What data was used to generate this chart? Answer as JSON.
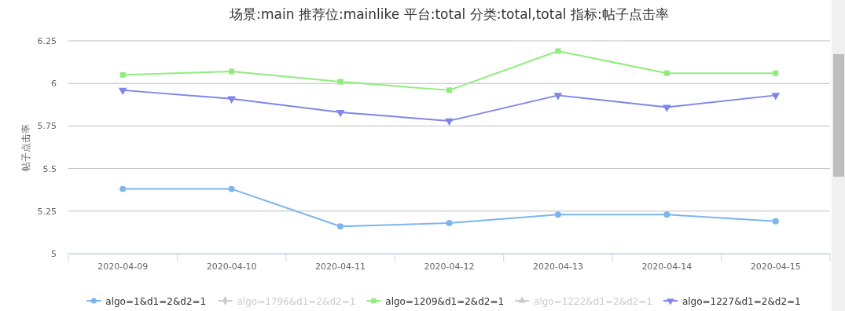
{
  "chart_data": {
    "type": "line",
    "title": "场景:main 推荐位:mainlike 平台:total 分类:total,total 指标:帖子点击率",
    "ylabel": "帖子点击率",
    "categories": [
      "2020-04-09",
      "2020-04-10",
      "2020-04-11",
      "2020-04-12",
      "2020-04-13",
      "2020-04-14",
      "2020-04-15"
    ],
    "series": [
      {
        "name": "algo=1&d1=2&d2=1",
        "color": "#7cb5ec",
        "marker": "circle",
        "values": [
          5.38,
          5.38,
          5.16,
          5.18,
          5.23,
          5.23,
          5.19
        ]
      },
      {
        "name": "algo=1796&d1=2&d2=1",
        "color": "#cccccc",
        "marker": "diamond",
        "values": [
          null,
          null,
          null,
          null,
          null,
          null,
          null
        ]
      },
      {
        "name": "algo=1209&d1=2&d2=1",
        "color": "#90ed7d",
        "marker": "square",
        "values": [
          6.05,
          6.07,
          6.01,
          5.96,
          6.19,
          6.06,
          6.06
        ]
      },
      {
        "name": "algo=1222&d1=2&d2=1",
        "color": "#cccccc",
        "marker": "triangle",
        "values": [
          null,
          null,
          null,
          null,
          null,
          null,
          null
        ]
      },
      {
        "name": "algo=1227&d1=2&d2=1",
        "color": "#8085e9",
        "marker": "triangle-down",
        "values": [
          5.96,
          5.91,
          5.83,
          5.78,
          5.93,
          5.86,
          5.93
        ]
      }
    ],
    "ylim": [
      5,
      6.25
    ],
    "yticks": [
      5,
      5.25,
      5.5,
      5.75,
      6,
      6.25
    ],
    "grid": "y",
    "legend": "bottom"
  }
}
